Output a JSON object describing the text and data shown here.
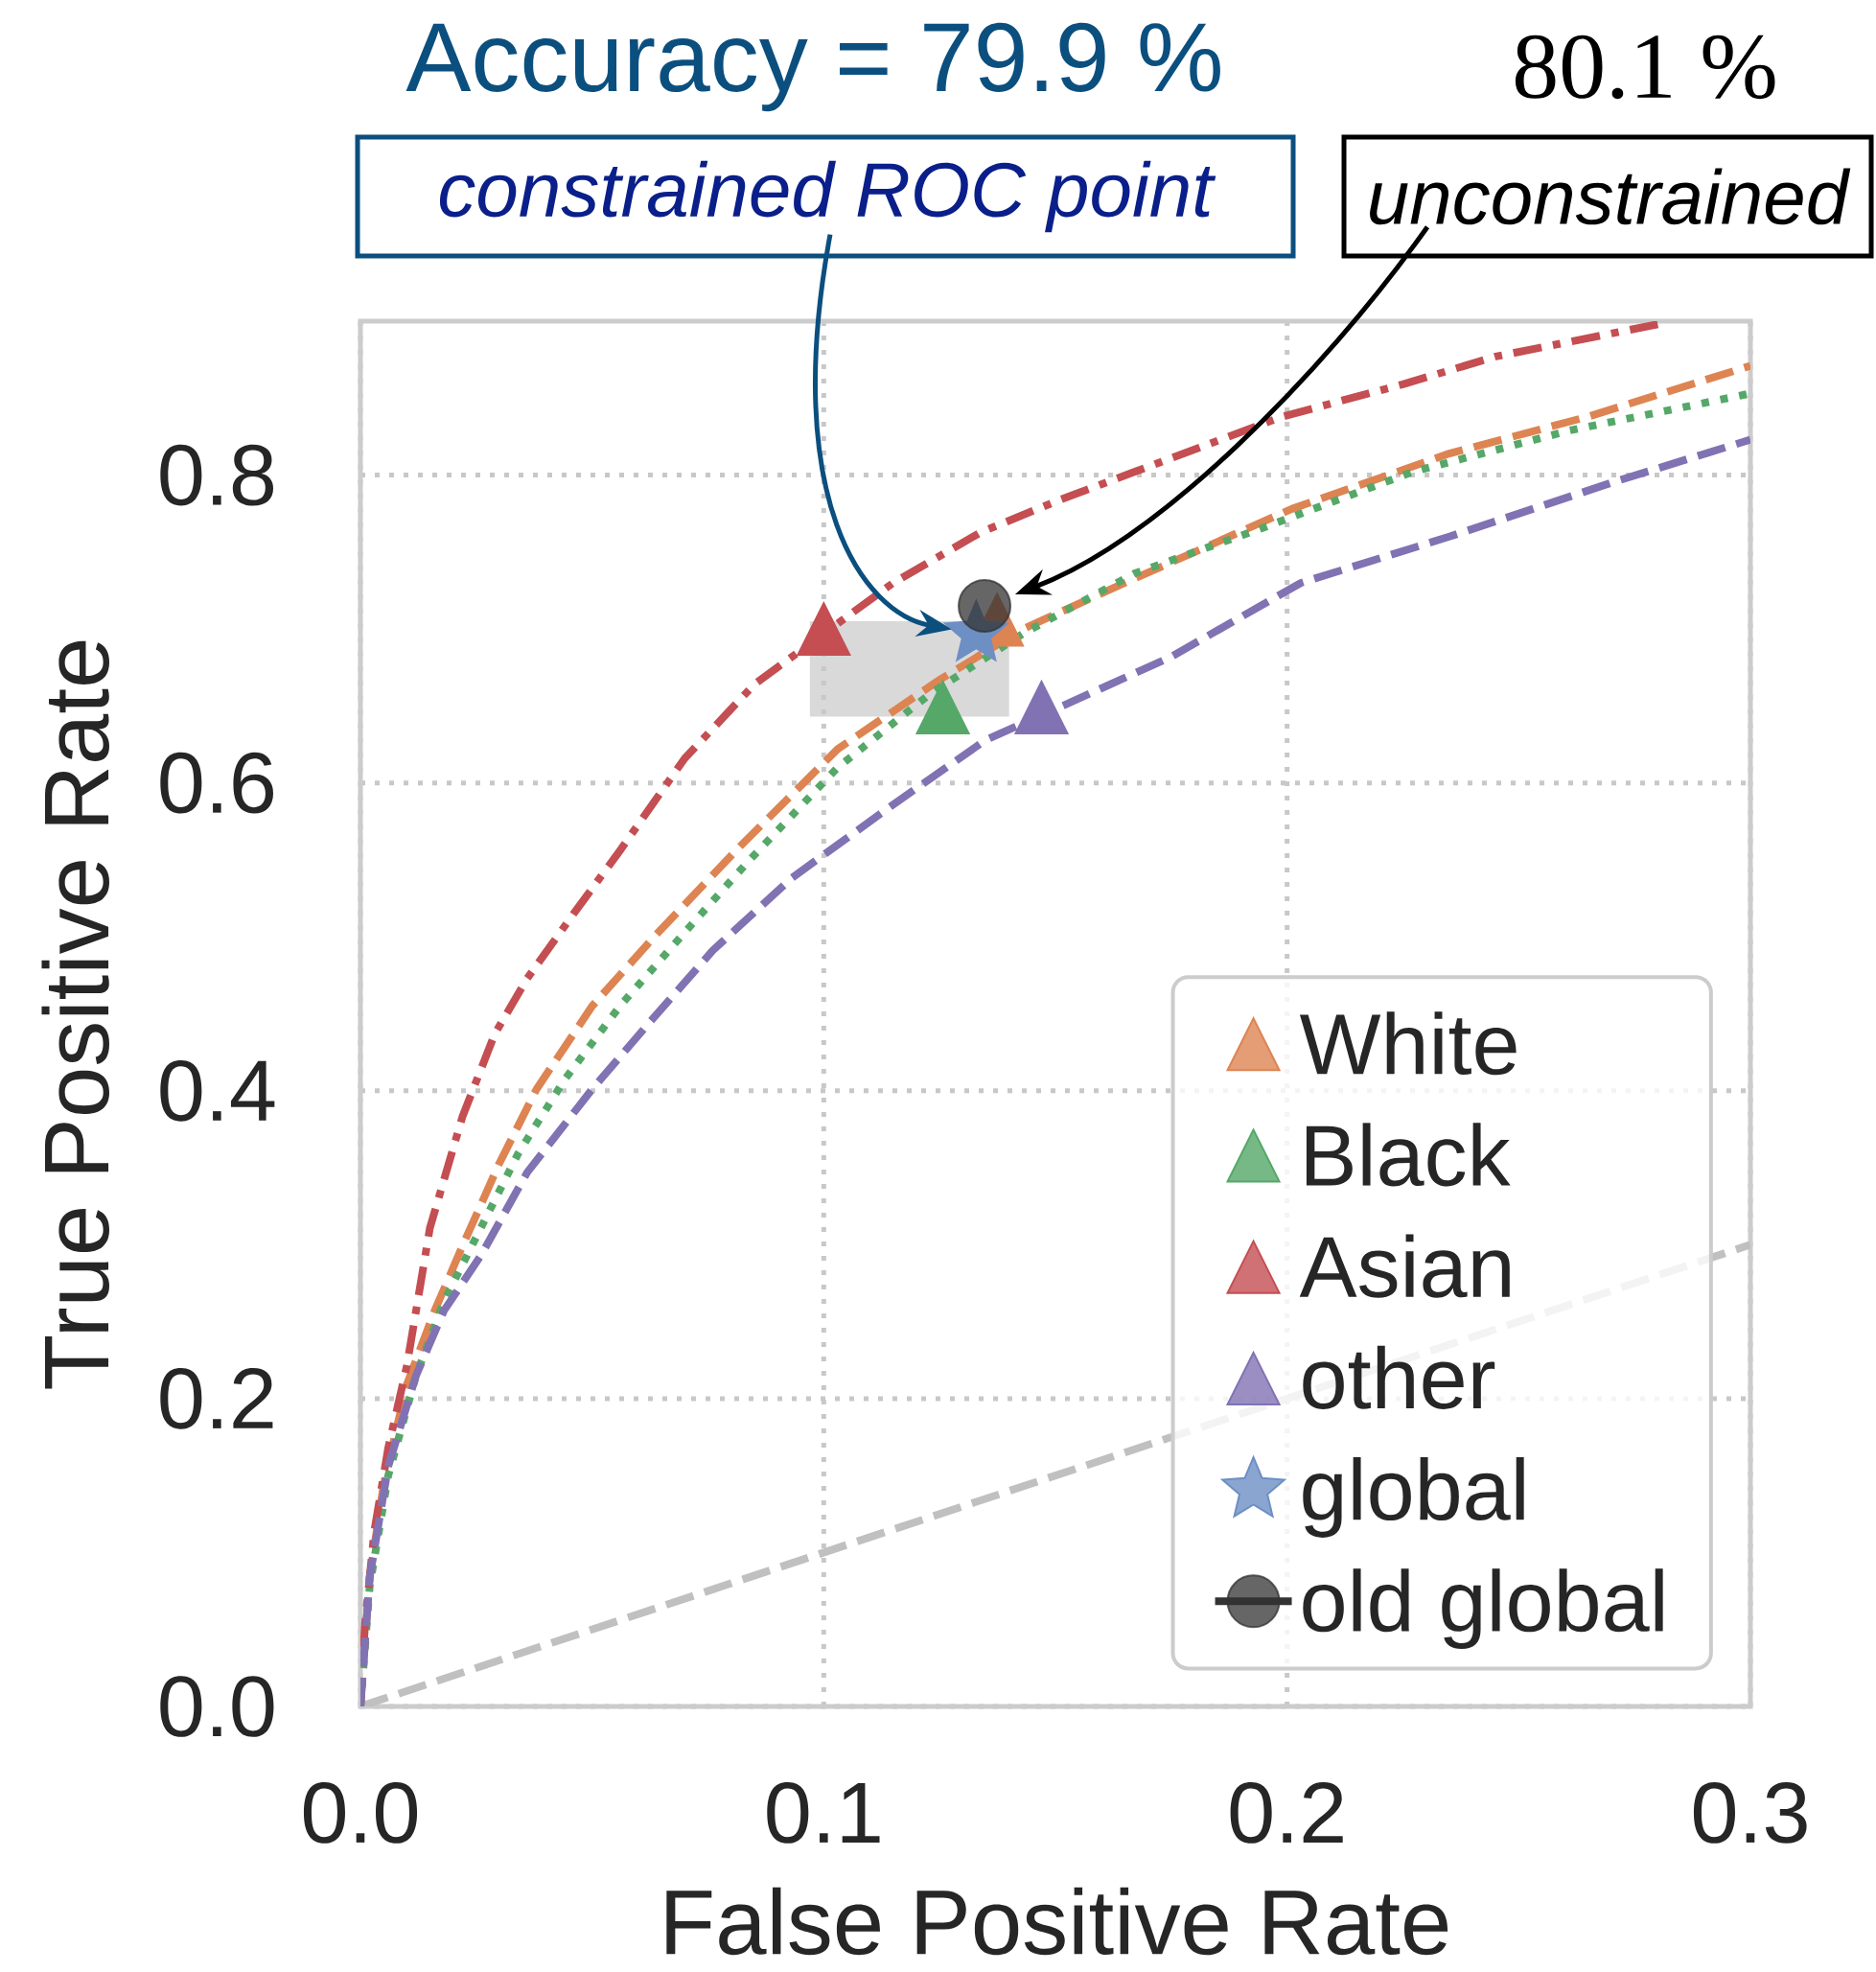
{
  "chart_data": {
    "type": "line",
    "xlabel": "False Positive Rate",
    "ylabel": "True Positive Rate",
    "xlim": [
      0,
      0.3
    ],
    "ylim": [
      0,
      0.9
    ],
    "xticks": [
      {
        "value": 0,
        "label": "0.0"
      },
      0.1,
      0.2,
      0.3
    ],
    "yticks": [
      {
        "value": 0,
        "label": "0.0"
      },
      0.2,
      0.4,
      0.6,
      0.8
    ],
    "grid": true,
    "legend": "bottom right",
    "annotations": [
      "Accuracy = 79.9 %",
      "constrained ROC point",
      "80.1 %",
      "unconstrained"
    ],
    "series": [
      {
        "color": "#c0c0c0",
        "line_style": "dashed",
        "x": [
          0,
          0.3
        ],
        "values": [
          0,
          0.3
        ]
      },
      {
        "color": "#dd8452",
        "line_style": "dashed",
        "x": [
          0,
          0.002,
          0.005,
          0.01,
          0.016,
          0.022,
          0.03,
          0.038,
          0.05,
          0.064,
          0.082,
          0.103,
          0.125,
          0.143,
          0.165,
          0.201,
          0.235,
          0.265,
          0.3
        ],
        "values": [
          0,
          0.084,
          0.144,
          0.209,
          0.257,
          0.299,
          0.353,
          0.401,
          0.455,
          0.502,
          0.559,
          0.622,
          0.667,
          0.7,
          0.73,
          0.778,
          0.814,
          0.838,
          0.871
        ]
      },
      {
        "color": "#55a868",
        "line_style": "dotted",
        "x": [
          0,
          0.002,
          0.006,
          0.012,
          0.018,
          0.026,
          0.034,
          0.044,
          0.056,
          0.07,
          0.084,
          0.103,
          0.123,
          0.143,
          0.167,
          0.195,
          0.227,
          0.261,
          0.3
        ],
        "values": [
          0,
          0.078,
          0.15,
          0.215,
          0.263,
          0.311,
          0.359,
          0.407,
          0.455,
          0.503,
          0.55,
          0.61,
          0.658,
          0.697,
          0.736,
          0.766,
          0.802,
          0.829,
          0.853
        ]
      },
      {
        "color": "#c44e52",
        "line_style": "dashdot",
        "x": [
          0,
          0.001,
          0.003,
          0.006,
          0.01,
          0.015,
          0.022,
          0.029,
          0.036,
          0.046,
          0.056,
          0.07,
          0.085,
          0.115,
          0.134,
          0.151,
          0.167,
          0.199,
          0.225,
          0.245,
          0.28
        ],
        "values": [
          0,
          0.054,
          0.114,
          0.168,
          0.221,
          0.311,
          0.383,
          0.437,
          0.473,
          0.515,
          0.556,
          0.616,
          0.664,
          0.73,
          0.763,
          0.784,
          0.802,
          0.838,
          0.859,
          0.877,
          0.898
        ]
      },
      {
        "color": "#8172b3",
        "line_style": "dashed",
        "x": [
          0,
          0.002,
          0.006,
          0.012,
          0.018,
          0.026,
          0.036,
          0.05,
          0.062,
          0.076,
          0.093,
          0.115,
          0.135,
          0.153,
          0.175,
          0.203,
          0.235,
          0.271,
          0.3
        ],
        "values": [
          0,
          0.084,
          0.156,
          0.215,
          0.257,
          0.293,
          0.347,
          0.401,
          0.443,
          0.491,
          0.538,
          0.586,
          0.628,
          0.652,
          0.682,
          0.73,
          0.76,
          0.796,
          0.823
        ]
      },
      {
        "type": "scatter",
        "name": "White",
        "color": "#dd8452",
        "marker": "triangle",
        "x": [
          0.1374
        ],
        "values": [
          0.706
        ]
      },
      {
        "type": "scatter",
        "name": "Black",
        "color": "#55a868",
        "marker": "triangle",
        "x": [
          0.1257
        ],
        "values": [
          0.649
        ]
      },
      {
        "type": "scatter",
        "name": "Asian",
        "color": "#c44e52",
        "marker": "triangle",
        "x": [
          0.1
        ],
        "values": [
          0.7
        ]
      },
      {
        "type": "scatter",
        "name": "other",
        "color": "#8172b3",
        "marker": "triangle",
        "x": [
          0.147
        ],
        "values": [
          0.649
        ]
      },
      {
        "type": "scatter",
        "name": "global",
        "color": "#6d8fc4",
        "marker": "star",
        "x": [
          0.1329
        ],
        "values": [
          0.697
        ]
      },
      {
        "name": "old global",
        "color": "#333333",
        "marker": "circle",
        "line_style": "solid",
        "x": [
          0.1347
        ],
        "values": [
          0.715
        ]
      }
    ]
  }
}
